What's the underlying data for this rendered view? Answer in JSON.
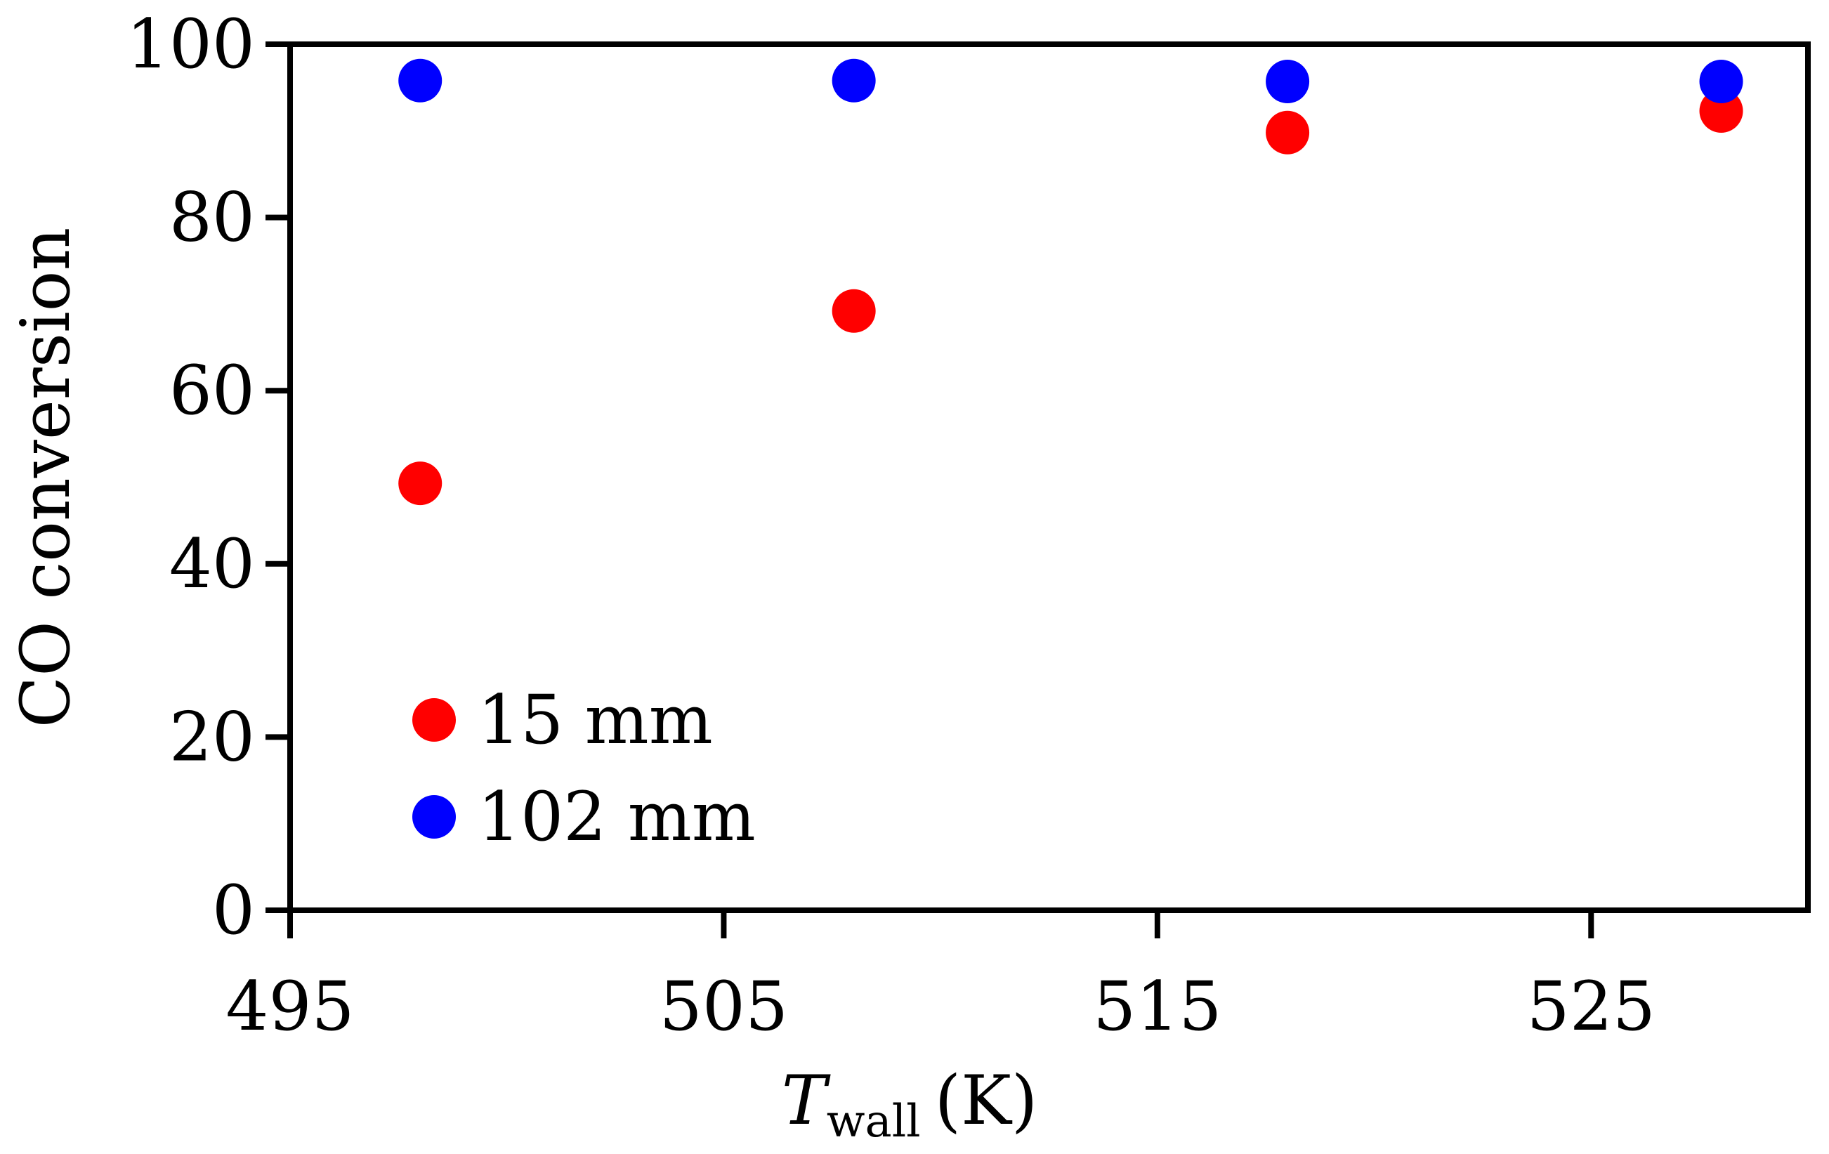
{
  "chart_data": {
    "type": "scatter",
    "title": "",
    "xlabel": {
      "symbol": "T",
      "subscript": "wall",
      "unit": "(K)"
    },
    "ylabel": "CO conversion",
    "xlim": [
      495,
      530
    ],
    "ylim": [
      0,
      100
    ],
    "xticks": [
      495,
      505,
      515,
      525
    ],
    "yticks": [
      0,
      20,
      40,
      60,
      80,
      100
    ],
    "grid": false,
    "legend_position": "bottom-left",
    "series": [
      {
        "name": "15 mm",
        "color": "#ff0000",
        "x": [
          498,
          508,
          518,
          528
        ],
        "y": [
          49.3,
          69.2,
          89.8,
          92.3
        ]
      },
      {
        "name": "102 mm",
        "color": "#0000ff",
        "x": [
          498,
          508,
          518,
          528
        ],
        "y": [
          95.8,
          95.8,
          95.7,
          95.7
        ]
      }
    ]
  }
}
